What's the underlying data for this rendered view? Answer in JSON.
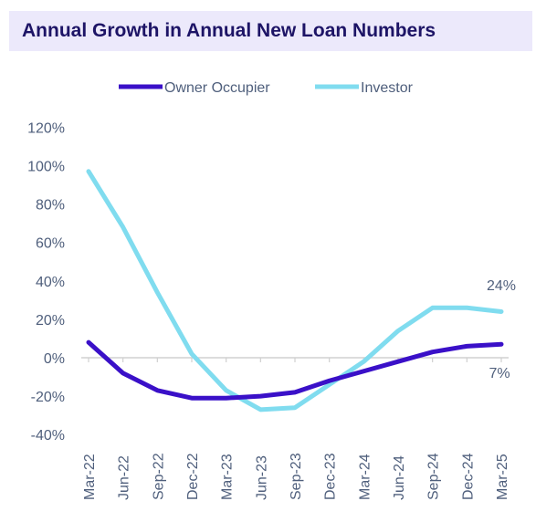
{
  "chart_data": {
    "type": "line",
    "title": "Annual Growth in Annual New Loan Numbers",
    "categories": [
      "Mar-22",
      "Jun-22",
      "Sep-22",
      "Dec-22",
      "Mar-23",
      "Jun-23",
      "Sep-23",
      "Dec-23",
      "Mar-24",
      "Jun-24",
      "Sep-24",
      "Dec-24",
      "Mar-25"
    ],
    "series": [
      {
        "name": "Owner Occupier",
        "color": "#3a10c8",
        "values": [
          8,
          -8,
          -17,
          -21,
          -21,
          -20,
          -18,
          -12,
          -7,
          -2,
          3,
          6,
          7
        ]
      },
      {
        "name": "Investor",
        "color": "#80dcef",
        "values": [
          97,
          68,
          34,
          2,
          -17,
          -27,
          -26,
          -14,
          -2,
          14,
          26,
          26,
          24
        ]
      }
    ],
    "yticks": [
      "120%",
      "100%",
      "80%",
      "60%",
      "40%",
      "20%",
      "0%",
      "-20%",
      "-40%"
    ],
    "ylim": [
      -40,
      120
    ],
    "legend": "top",
    "grid": false,
    "annotations": [
      {
        "series": "Investor",
        "text": "24%"
      },
      {
        "series": "Owner Occupier",
        "text": "7%"
      }
    ]
  }
}
